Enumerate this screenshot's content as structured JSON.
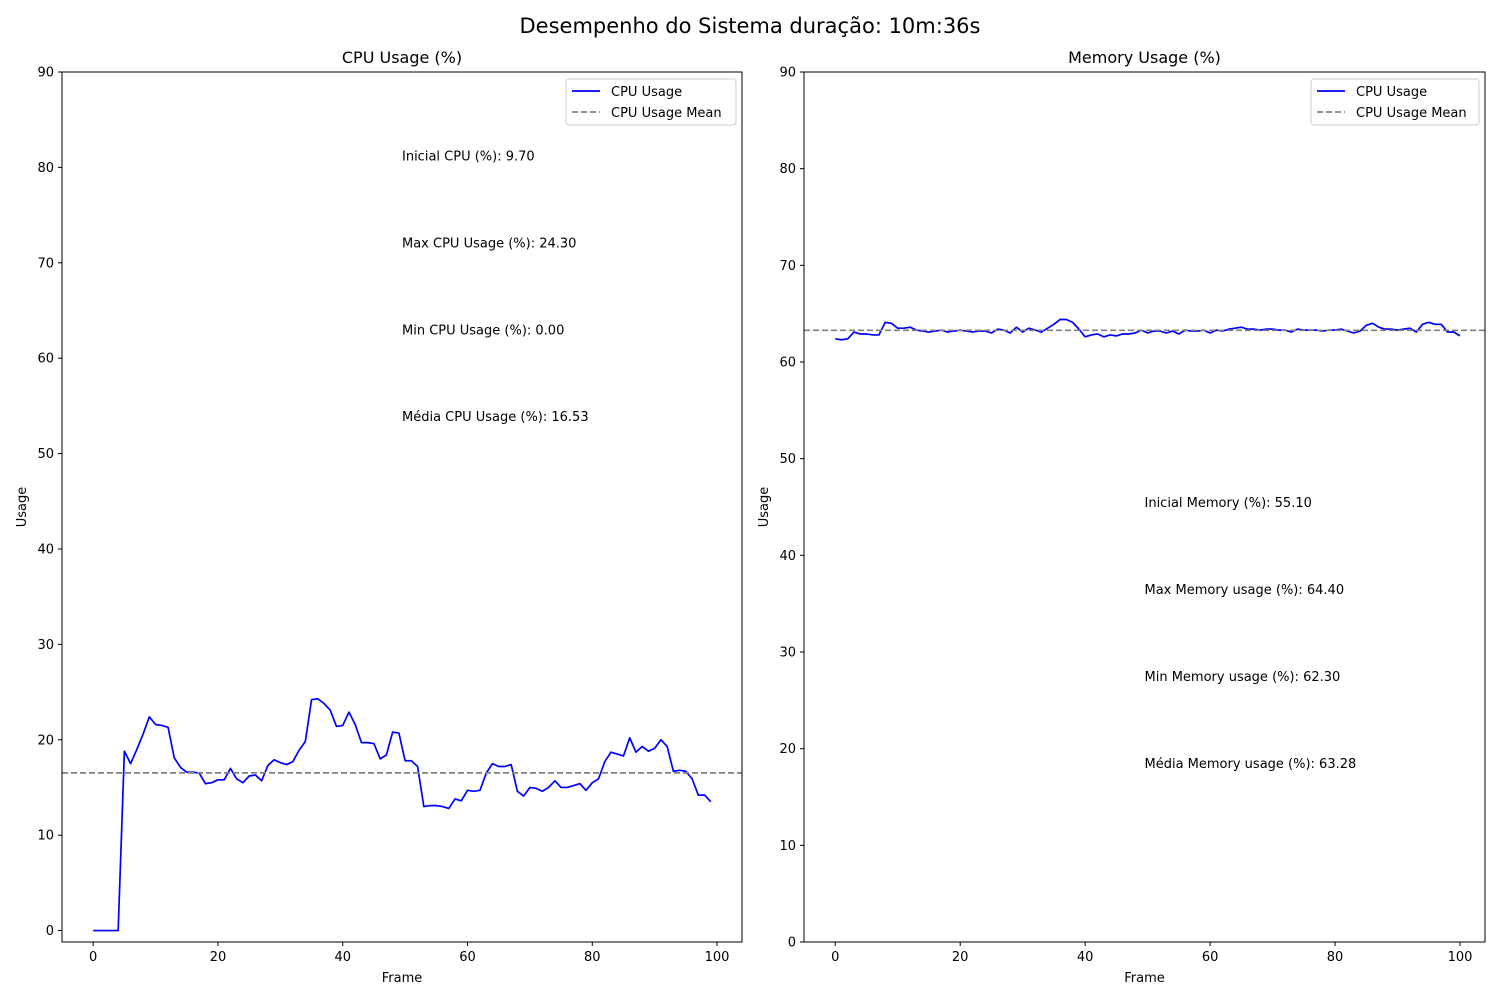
{
  "figure": {
    "suptitle": "Desempenho do Sistema duração: 10m:36s"
  },
  "colors": {
    "series": "#0000ff",
    "mean": "#808080",
    "axes": "#000000"
  },
  "chart_data": [
    {
      "type": "line",
      "title": "CPU Usage (%)",
      "xlabel": "Frame",
      "ylabel": "Usage",
      "xlim": [
        -5,
        104
      ],
      "ylim": [
        -1.2,
        90
      ],
      "xticks": [
        0,
        20,
        40,
        60,
        80,
        100
      ],
      "yticks": [
        0,
        10,
        20,
        30,
        40,
        50,
        60,
        70,
        80,
        90
      ],
      "grid": false,
      "legend": {
        "placement": "upper right",
        "entries": [
          "CPU Usage",
          "CPU Usage Mean"
        ]
      },
      "series": [
        {
          "name": "CPU Usage",
          "x_start": 0,
          "values": [
            0.0,
            0.0,
            0.0,
            0.0,
            0.0,
            18.8,
            17.5,
            19.0,
            20.6,
            22.4,
            21.6,
            21.5,
            21.3,
            18.1,
            17.1,
            16.6,
            16.6,
            16.5,
            15.4,
            15.5,
            15.8,
            15.8,
            17.0,
            15.9,
            15.5,
            16.2,
            16.3,
            15.7,
            17.3,
            17.9,
            17.6,
            17.4,
            17.7,
            18.9,
            19.8,
            24.2,
            24.3,
            23.8,
            23.1,
            21.4,
            21.5,
            22.9,
            21.6,
            19.7,
            19.7,
            19.6,
            18.0,
            18.4,
            20.8,
            20.7,
            17.8,
            17.8,
            17.2,
            13.0,
            13.1,
            13.1,
            13.0,
            12.8,
            13.8,
            13.6,
            14.7,
            14.6,
            14.7,
            16.5,
            17.5,
            17.2,
            17.2,
            17.4,
            14.6,
            14.1,
            15.0,
            14.9,
            14.6,
            15.0,
            15.7,
            15.0,
            15.0,
            15.2,
            15.4,
            14.7,
            15.5,
            15.9,
            17.7,
            18.7,
            18.5,
            18.3,
            20.2,
            18.7,
            19.3,
            18.8,
            19.1,
            20.0,
            19.3,
            16.7,
            16.8,
            16.7,
            15.9,
            14.2,
            14.2,
            13.5
          ]
        },
        {
          "name": "CPU Usage Mean",
          "style": "dashed",
          "value": 16.53
        }
      ],
      "annotations": [
        {
          "text": "Inicial CPU (%): 9.70",
          "x": 49.5,
          "y": 80.7
        },
        {
          "text": "Max CPU Usage (%): 24.30",
          "x": 49.5,
          "y": 71.6
        },
        {
          "text": "Min CPU Usage (%): 0.00",
          "x": 49.5,
          "y": 62.5
        },
        {
          "text": "Média CPU Usage (%): 16.53",
          "x": 49.5,
          "y": 53.4
        }
      ]
    },
    {
      "type": "line",
      "title": "Memory Usage (%)",
      "xlabel": "Frame",
      "ylabel": "Usage",
      "xlim": [
        -5,
        104
      ],
      "ylim": [
        0,
        90
      ],
      "xticks": [
        0,
        20,
        40,
        60,
        80,
        100
      ],
      "yticks": [
        0,
        10,
        20,
        30,
        40,
        50,
        60,
        70,
        80,
        90
      ],
      "grid": false,
      "legend": {
        "placement": "upper right",
        "entries": [
          "CPU Usage",
          "CPU Usage Mean"
        ]
      },
      "series": [
        {
          "name": "CPU Usage",
          "x_start": 0,
          "values": [
            62.4,
            62.3,
            62.4,
            63.1,
            62.9,
            62.9,
            62.8,
            62.8,
            64.1,
            64.0,
            63.5,
            63.5,
            63.6,
            63.3,
            63.2,
            63.1,
            63.2,
            63.3,
            63.1,
            63.2,
            63.3,
            63.2,
            63.1,
            63.2,
            63.2,
            63.0,
            63.4,
            63.3,
            63.0,
            63.6,
            63.1,
            63.5,
            63.3,
            63.1,
            63.5,
            63.9,
            64.4,
            64.4,
            64.1,
            63.4,
            62.6,
            62.8,
            62.9,
            62.6,
            62.8,
            62.7,
            62.9,
            62.9,
            63.0,
            63.3,
            63.0,
            63.2,
            63.2,
            63.0,
            63.2,
            62.9,
            63.3,
            63.2,
            63.2,
            63.3,
            63.0,
            63.3,
            63.2,
            63.4,
            63.5,
            63.6,
            63.4,
            63.4,
            63.3,
            63.4,
            63.4,
            63.3,
            63.3,
            63.1,
            63.4,
            63.3,
            63.3,
            63.3,
            63.2,
            63.3,
            63.3,
            63.4,
            63.2,
            63.0,
            63.2,
            63.8,
            64.0,
            63.6,
            63.4,
            63.4,
            63.3,
            63.4,
            63.5,
            63.1,
            63.9,
            64.1,
            63.9,
            63.9,
            63.1,
            63.1,
            62.7
          ]
        },
        {
          "name": "CPU Usage Mean",
          "style": "dashed",
          "value": 63.28
        }
      ],
      "annotations": [
        {
          "text": "Inicial Memory (%): 55.10",
          "x": 49.5,
          "y": 45.0
        },
        {
          "text": "Max Memory usage (%): 64.40",
          "x": 49.5,
          "y": 36.0
        },
        {
          "text": "Min Memory usage (%): 62.30",
          "x": 49.5,
          "y": 27.0
        },
        {
          "text": "Média Memory usage (%): 63.28",
          "x": 49.5,
          "y": 18.0
        }
      ]
    }
  ]
}
